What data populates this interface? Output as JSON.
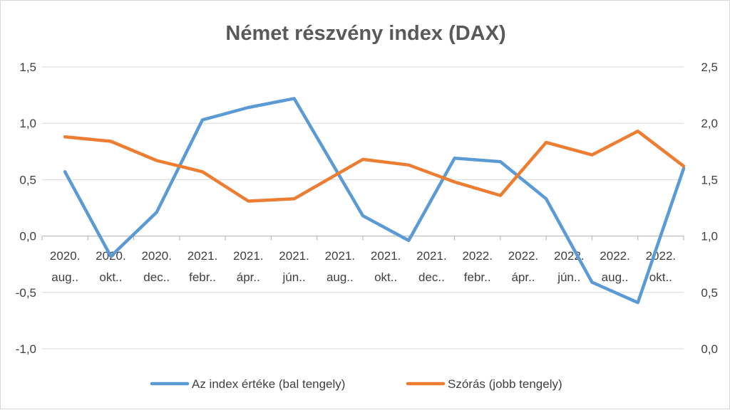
{
  "chart_data": {
    "type": "line",
    "title": "Német részvény index (DAX)",
    "categories": [
      [
        "2020.",
        "aug.."
      ],
      [
        "2020.",
        "okt.."
      ],
      [
        "2020.",
        "dec.."
      ],
      [
        "2021.",
        "febr.."
      ],
      [
        "2021.",
        "ápr.."
      ],
      [
        "2021.",
        "jún.."
      ],
      [
        "2021.",
        "aug.."
      ],
      [
        "2021.",
        "okt.."
      ],
      [
        "2021.",
        "dec.."
      ],
      [
        "2022.",
        "febr.."
      ],
      [
        "2022.",
        "ápr.."
      ],
      [
        "2022.",
        "jún.."
      ],
      [
        "2022.",
        "aug.."
      ],
      [
        "2022.",
        "okt.."
      ]
    ],
    "left_axis": {
      "ylim": [
        -1.0,
        1.5
      ],
      "ticks": [
        "1,5",
        "1,0",
        "0,5",
        "0,0",
        "-0,5",
        "-1,0"
      ],
      "tick_values": [
        1.5,
        1.0,
        0.5,
        0.0,
        -0.5,
        -1.0
      ]
    },
    "right_axis": {
      "ylim": [
        0.0,
        2.5
      ],
      "ticks": [
        "2,5",
        "2,0",
        "1,5",
        "1,0",
        "0,5",
        "0,0"
      ],
      "tick_values": [
        2.5,
        2.0,
        1.5,
        1.0,
        0.5,
        0.0
      ]
    },
    "grid": true,
    "legend_position": "bottom",
    "series": [
      {
        "name": "Az index értéke (bal tengely)",
        "axis": "left",
        "color": "#5b9bd5",
        "x": [
          0,
          1,
          2,
          3,
          4,
          5,
          6.5,
          7.5,
          8.5,
          9.5,
          10.5,
          11.5,
          12.5,
          13.5
        ],
        "values": [
          0.57,
          -0.18,
          0.21,
          1.03,
          1.14,
          1.22,
          0.18,
          -0.04,
          0.69,
          0.66,
          0.33,
          -0.41,
          -0.59,
          0.6
        ]
      },
      {
        "name": "Szórás (jobb tengely)",
        "axis": "right",
        "color": "#ed7d31",
        "x": [
          0,
          1,
          2,
          3,
          4,
          5,
          6.5,
          7.5,
          8.5,
          9.5,
          10.5,
          11.5,
          12.5,
          13.5
        ],
        "values": [
          1.88,
          1.84,
          1.67,
          1.57,
          1.31,
          1.33,
          1.68,
          1.63,
          1.48,
          1.36,
          1.83,
          1.72,
          1.93,
          1.62
        ]
      }
    ]
  }
}
